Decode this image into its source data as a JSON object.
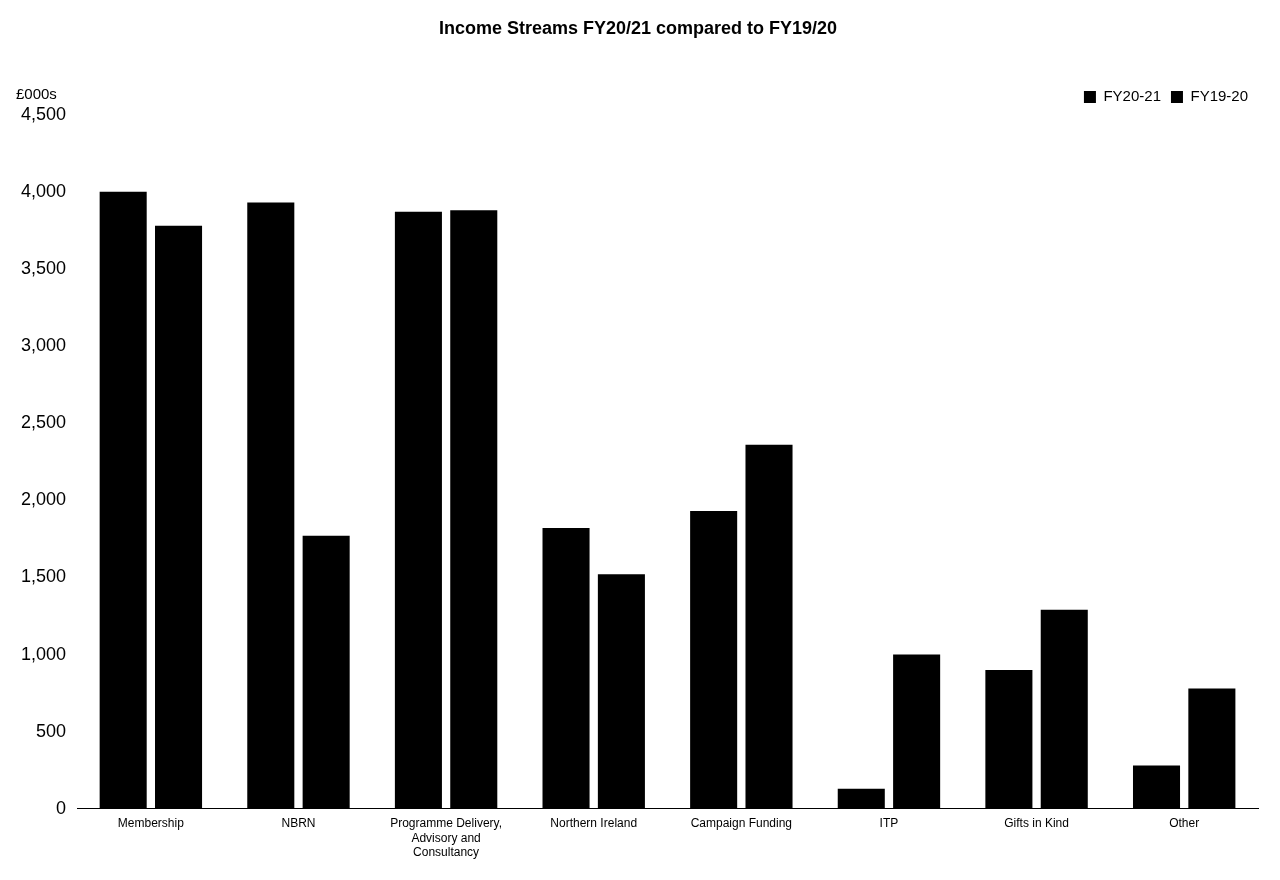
{
  "chart_data": {
    "type": "bar",
    "title": "Income Streams FY20/21 compared to FY19/20",
    "ylabel": "£000s",
    "categories": [
      "Membership",
      "NBRN",
      "Programme Delivery, Advisory and Consultancy",
      "Northern Ireland",
      "Campaign Funding",
      "ITP",
      "Gifts in Kind",
      "Other"
    ],
    "series": [
      {
        "name": "FY20-21",
        "color": "#000000",
        "values": [
          4000,
          3930,
          3870,
          1820,
          1930,
          130,
          900,
          280
        ]
      },
      {
        "name": "FY19-20",
        "color": "#000000",
        "values": [
          3780,
          1770,
          3880,
          1520,
          2360,
          1000,
          1290,
          780
        ]
      }
    ],
    "ylim": [
      0,
      4500
    ],
    "yticks": [
      0,
      {
        "value": 500,
        "label": "500"
      },
      {
        "value": 1000,
        "label": "1,000"
      },
      {
        "value": 1500,
        "label": "1,500"
      },
      {
        "value": 2000,
        "label": "2,000"
      },
      {
        "value": 2500,
        "label": "2,500"
      },
      {
        "value": 3000,
        "label": "3,000"
      },
      {
        "value": 3500,
        "label": "3,500"
      },
      {
        "value": 4000,
        "label": "4,000"
      },
      {
        "value": 4500,
        "label": "4,500"
      }
    ],
    "grid": false,
    "legend": "top right"
  }
}
